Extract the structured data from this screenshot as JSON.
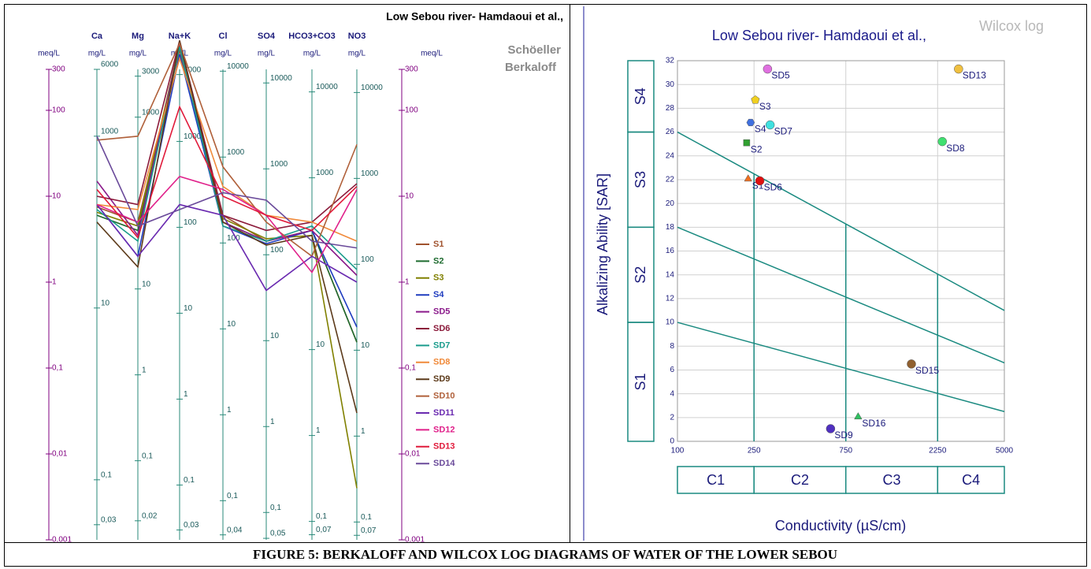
{
  "chart_data": [
    {
      "type": "line",
      "log_y": true,
      "title": "Low Sebou river- Hamdaoui et al.,",
      "subtitle": [
        "Schöeller",
        "Berkaloff"
      ],
      "y_label": "meq/L",
      "column_unit": "mg/L",
      "categories": [
        "Ca",
        "Mg",
        "Na+K",
        "Cl",
        "SO4",
        "HCO3+CO3",
        "NO3"
      ],
      "ylim": [
        0.001,
        300
      ],
      "yticks": [
        300,
        100,
        10,
        1,
        {
          "value": 0.1,
          "label": "0,1"
        },
        {
          "value": 0.01,
          "label": "0,01"
        },
        {
          "value": 0.001,
          "label": "0,001"
        }
      ],
      "column_axes": [
        {
          "ylim": [
            0.02,
            6000
          ],
          "ticks": [
            6000,
            1000,
            10,
            {
              "value": 0.1,
              "label": "0,1"
            },
            {
              "value": 0.03,
              "label": "0,03"
            }
          ]
        },
        {
          "ylim": [
            0.012,
            3600
          ],
          "ticks": [
            3000,
            1000,
            10,
            1,
            {
              "value": 0.1,
              "label": "0,1"
            },
            {
              "value": 0.02,
              "label": "0,02"
            }
          ]
        },
        {
          "ylim": [
            0.023,
            6900
          ],
          "ticks": [
            6000,
            1000,
            100,
            10,
            1,
            {
              "value": 0.1,
              "label": "0,1"
            },
            {
              "value": 0.03,
              "label": "0,03"
            }
          ]
        },
        {
          "ylim": [
            0.035,
            10500
          ],
          "ticks": [
            10000,
            1000,
            100,
            10,
            1,
            {
              "value": 0.1,
              "label": "0,1"
            },
            {
              "value": 0.04,
              "label": "0,04"
            }
          ]
        },
        {
          "ylim": [
            0.048,
            14400
          ],
          "ticks": [
            10000,
            1000,
            100,
            10,
            1,
            {
              "value": 0.1,
              "label": "0,1"
            },
            {
              "value": 0.05,
              "label": "0,05"
            }
          ]
        },
        {
          "ylim": [
            0.061,
            18300
          ],
          "ticks": [
            10000,
            1000,
            10,
            1,
            {
              "value": 0.1,
              "label": "0,1"
            },
            {
              "value": 0.07,
              "label": "0,07"
            }
          ]
        },
        {
          "ylim": [
            0.062,
            18600
          ],
          "ticks": [
            10000,
            1000,
            100,
            10,
            1,
            {
              "value": 0.1,
              "label": "0,1"
            },
            {
              "value": 0.07,
              "label": "0,07"
            }
          ]
        }
      ],
      "series": [
        {
          "name": "S1",
          "color": "#a0522d",
          "values": [
            7.5,
            5,
            500,
            6,
            3,
            4,
            0.2
          ]
        },
        {
          "name": "S2",
          "color": "#1e6b2f",
          "values": [
            6,
            4,
            550,
            5,
            3,
            4,
            0.2
          ]
        },
        {
          "name": "S3",
          "color": "#808000",
          "values": [
            6.5,
            4.5,
            600,
            5.5,
            3.2,
            3.5,
            0.004
          ]
        },
        {
          "name": "S4",
          "color": "#1f3cbf",
          "values": [
            8,
            2,
            450,
            4.5,
            2.8,
            4,
            0.3
          ]
        },
        {
          "name": "SD5",
          "color": "#8b1a8b",
          "values": [
            15,
            3.5,
            600,
            5,
            3,
            4,
            1.2
          ]
        },
        {
          "name": "SD6",
          "color": "#8b1a3a",
          "values": [
            10,
            8,
            650,
            6,
            4,
            5,
            14
          ]
        },
        {
          "name": "SD7",
          "color": "#1a9c8c",
          "values": [
            7,
            3,
            550,
            4.5,
            3,
            4.5,
            1.4
          ]
        },
        {
          "name": "SD8",
          "color": "#f08a3a",
          "values": [
            8,
            7,
            400,
            13,
            6,
            5,
            3
          ]
        },
        {
          "name": "SD9",
          "color": "#5c3a1a",
          "values": [
            5,
            1.5,
            650,
            5,
            2.7,
            3.5,
            0.03
          ]
        },
        {
          "name": "SD10",
          "color": "#b0603a",
          "values": [
            45,
            50,
            600,
            22,
            5,
            2,
            40
          ]
        },
        {
          "name": "SD11",
          "color": "#6a2ab0",
          "values": [
            8,
            2,
            8,
            6,
            0.8,
            2,
            1
          ]
        },
        {
          "name": "SD12",
          "color": "#e0208a",
          "values": [
            8,
            5,
            17,
            12,
            6,
            1.3,
            12
          ]
        },
        {
          "name": "SD13",
          "color": "#e01a3a",
          "values": [
            12,
            3.3,
            110,
            10,
            6,
            4,
            13
          ]
        },
        {
          "name": "SD14",
          "color": "#6a4a9a",
          "values": [
            50,
            4.5,
            7,
            11,
            9,
            3,
            2.5
          ]
        }
      ]
    },
    {
      "type": "scatter",
      "log_x": true,
      "title": "Low Sebou river- Hamdaoui et al.,",
      "corner_label": "Wilcox log",
      "y_label": "Alkalizing Ability [SAR]",
      "x_label": "Conductivity  (µS/cm)",
      "xlim": [
        100,
        5000
      ],
      "xticks": [
        100,
        250,
        750,
        2250,
        5000
      ],
      "ylim": [
        0,
        32
      ],
      "yticks": [
        0,
        2,
        4,
        6,
        8,
        10,
        12,
        14,
        16,
        18,
        20,
        22,
        24,
        26,
        28,
        30,
        32
      ],
      "grid": true,
      "boundaries": [
        {
          "x": [
            100,
            5000
          ],
          "y": [
            26,
            11
          ]
        },
        {
          "x": [
            100,
            5000
          ],
          "y": [
            18,
            6.6
          ]
        },
        {
          "x": [
            100,
            5000
          ],
          "y": [
            10,
            2.5
          ]
        }
      ],
      "s_classes": [
        {
          "label": "S1",
          "range": [
            0,
            10
          ]
        },
        {
          "label": "S2",
          "range": [
            10,
            18
          ]
        },
        {
          "label": "S3",
          "range": [
            18,
            26
          ]
        },
        {
          "label": "S4",
          "range": [
            26,
            32
          ]
        }
      ],
      "c_classes": [
        {
          "label": "C1",
          "range": [
            100,
            250
          ]
        },
        {
          "label": "C2",
          "range": [
            250,
            750
          ]
        },
        {
          "label": "C3",
          "range": [
            750,
            2250
          ]
        },
        {
          "label": "C4",
          "range": [
            2250,
            5000
          ]
        }
      ],
      "points": [
        {
          "label": "SD5",
          "x": 294,
          "y": 31.3,
          "color": "#e070e0",
          "marker": "circle"
        },
        {
          "label": "SD13",
          "x": 2890,
          "y": 31.3,
          "color": "#f0c040",
          "marker": "circle"
        },
        {
          "label": "S3",
          "x": 254,
          "y": 28.7,
          "color": "#f0d020",
          "marker": "pentagon"
        },
        {
          "label": "S4",
          "x": 240,
          "y": 26.8,
          "color": "#4070e0",
          "marker": "hexagon"
        },
        {
          "label": "SD7",
          "x": 303,
          "y": 26.6,
          "color": "#40e0e0",
          "marker": "circle"
        },
        {
          "label": "S2",
          "x": 229,
          "y": 25.1,
          "color": "#30a030",
          "marker": "square"
        },
        {
          "label": "SD8",
          "x": 2380,
          "y": 25.2,
          "color": "#40e070",
          "marker": "circle"
        },
        {
          "label": "S1",
          "x": 233,
          "y": 22.05,
          "color": "#f07020",
          "marker": "triangle"
        },
        {
          "label": "SD6",
          "x": 268,
          "y": 21.9,
          "color": "#e01010",
          "marker": "circle"
        },
        {
          "label": "SD15",
          "x": 1644,
          "y": 6.5,
          "color": "#906030",
          "marker": "circle"
        },
        {
          "label": "SD16",
          "x": 869,
          "y": 2.05,
          "color": "#30c060",
          "marker": "triangle"
        },
        {
          "label": "SD9",
          "x": 625,
          "y": 1.06,
          "color": "#5030c0",
          "marker": "circle"
        }
      ]
    }
  ],
  "caption": "FIGURE 5: BERKALOFF AND WILCOX LOG DIAGRAMS OF WATER OF THE LOWER SEBOU"
}
